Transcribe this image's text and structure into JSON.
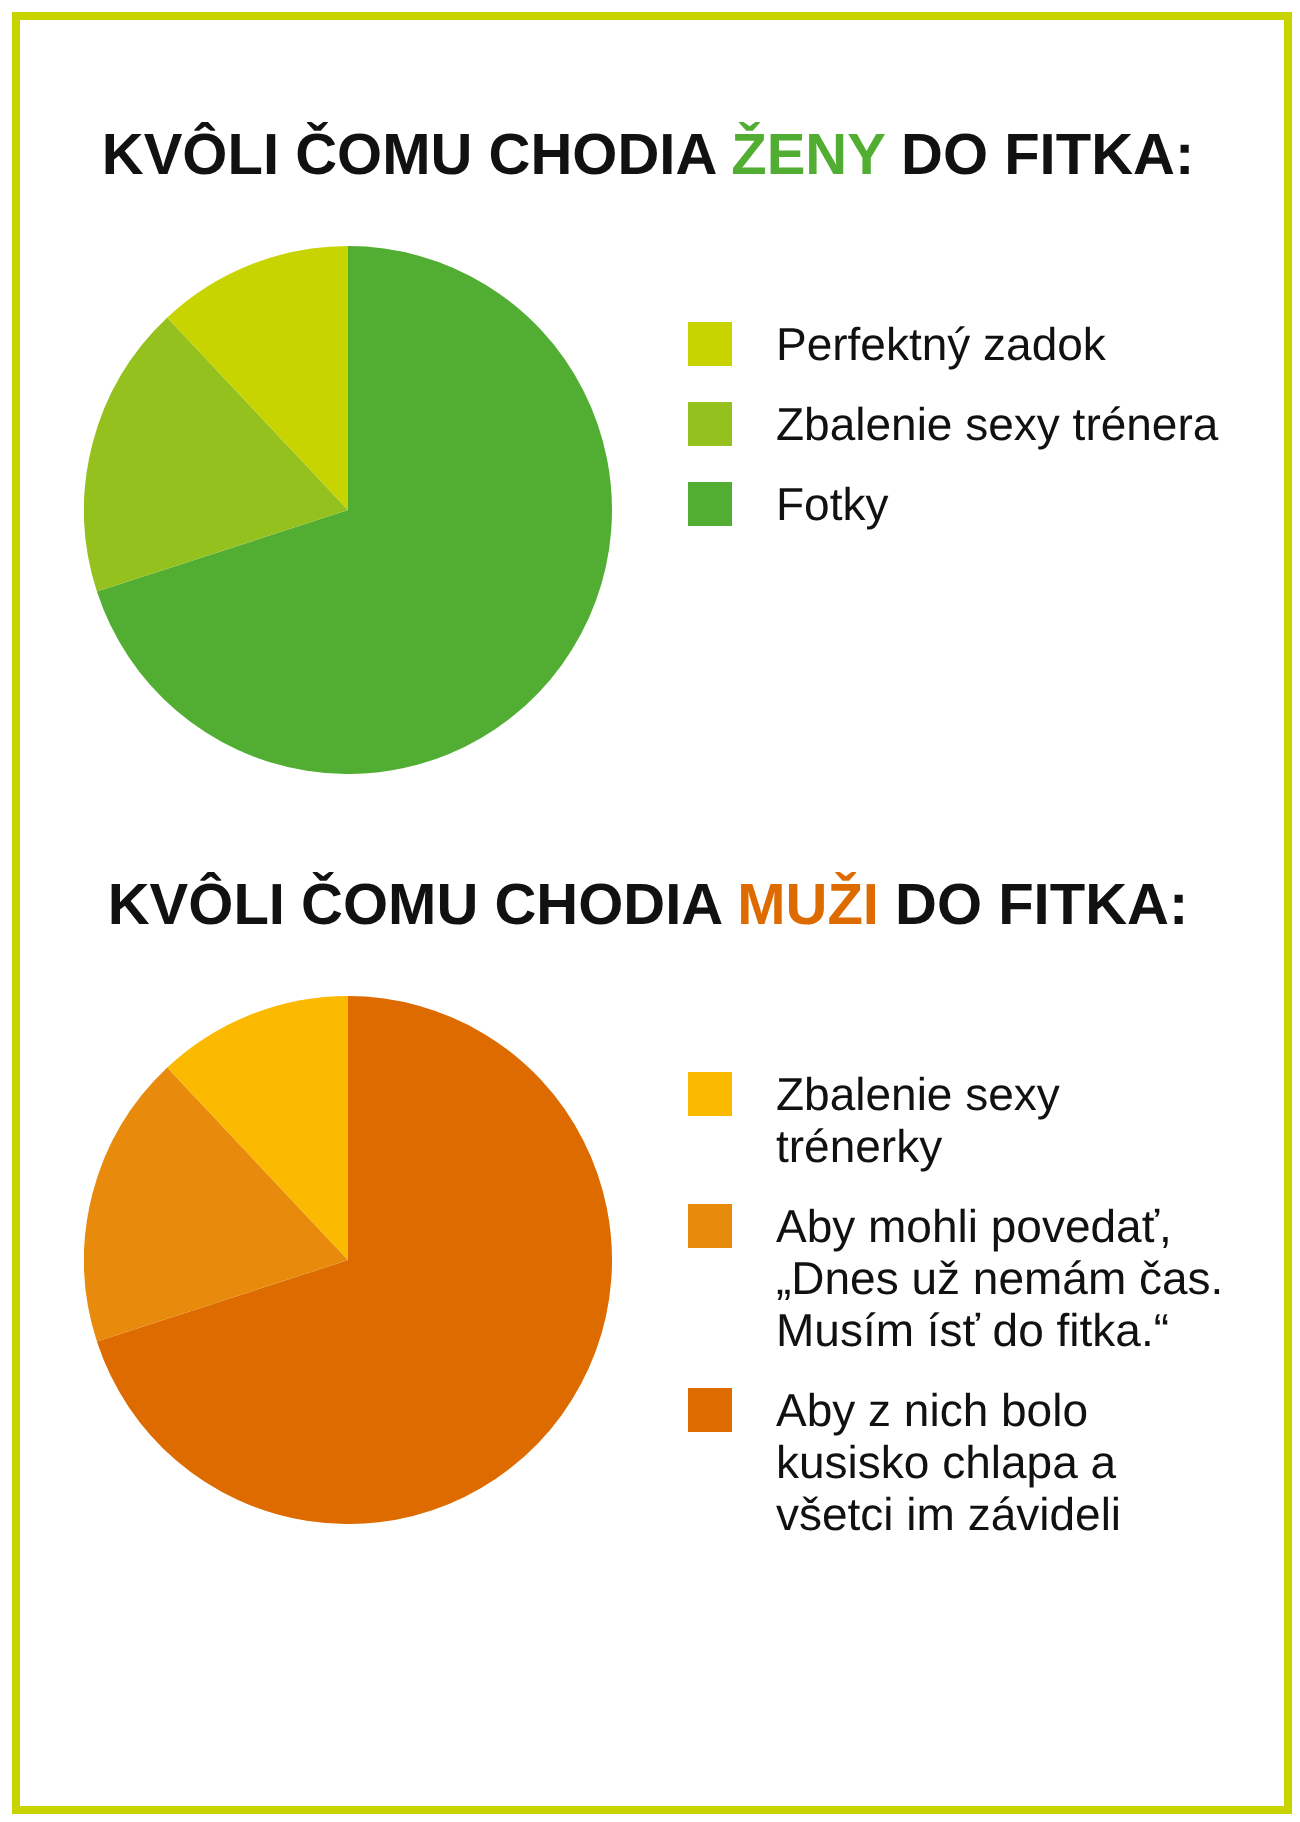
{
  "chart_data": [
    {
      "type": "pie",
      "title": "KVÔLI ČOMU CHODIA ŽENY DO FITKA:",
      "categories": [
        "Perfektný zadok",
        "Zbalenie sexy trénera",
        "Fotky"
      ],
      "values": [
        12,
        18,
        70
      ],
      "colors": [
        "#c8d400",
        "#95c11f",
        "#52ae32"
      ],
      "legend": "right"
    },
    {
      "type": "pie",
      "title": "KVÔLI ČOMU CHODIA MUŽI DO FITKA:",
      "categories": [
        "Zbalenie sexy trénerky",
        "Aby mohli povedať, „Dnes už nemám čas. Musím ísť do fitka.“",
        "Aby z nich bolo kusisko chlapa a všetci im závideli"
      ],
      "values": [
        12,
        18,
        70
      ],
      "colors": [
        "#fbb900",
        "#e88a0c",
        "#de6b00"
      ],
      "legend": "right"
    }
  ]
}
